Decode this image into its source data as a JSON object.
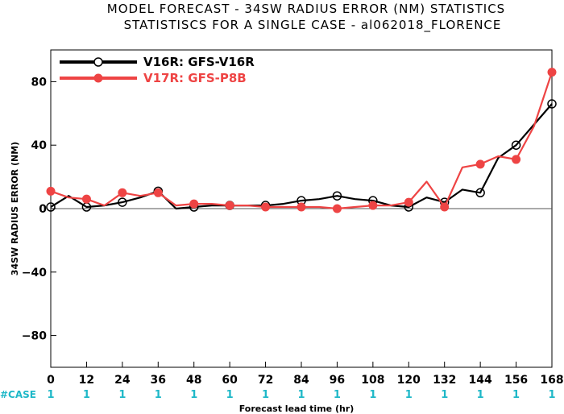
{
  "chart_data": {
    "type": "line",
    "title": "MODEL FORECAST - 34SW RADIUS ERROR (NM) STATISTICS",
    "subtitle": "STATISTISCS FOR A SINGLE CASE - al062018_FLORENCE",
    "xlabel": "Forecast lead time (hr)",
    "ylabel": "34SW RADIUS ERROR (NM)",
    "xlim": [
      0,
      168
    ],
    "ylim": [
      -100,
      100
    ],
    "x_ticks": [
      0,
      12,
      24,
      36,
      48,
      60,
      72,
      84,
      96,
      108,
      120,
      132,
      144,
      156,
      168
    ],
    "y_ticks": [
      80,
      40,
      0,
      -40,
      -80
    ],
    "case_label": "#CASE",
    "case_counts": [
      "1",
      "1",
      "1",
      "1",
      "1",
      "1",
      "1",
      "1",
      "1",
      "1",
      "1",
      "1",
      "1",
      "1",
      "1"
    ],
    "grid": false,
    "legend": "top-left",
    "series": [
      {
        "name": "V16R: GFS-V16R",
        "color": "#000000",
        "line_x": [
          0,
          6,
          12,
          18,
          24,
          30,
          36,
          42,
          48,
          54,
          60,
          66,
          72,
          78,
          84,
          90,
          96,
          102,
          108,
          114,
          120,
          126,
          132,
          138,
          144,
          150,
          156,
          162,
          168
        ],
        "line_y": [
          1,
          8,
          1,
          2,
          4,
          7,
          11,
          0,
          1,
          2,
          2,
          2,
          2,
          3,
          5,
          6,
          8,
          6,
          5,
          2,
          1,
          7,
          4,
          12,
          10,
          32,
          40,
          53,
          66
        ],
        "marker_x": [
          0,
          12,
          24,
          36,
          48,
          60,
          72,
          84,
          96,
          108,
          120,
          132,
          144,
          156,
          168
        ],
        "marker_y": [
          1,
          1,
          4,
          11,
          1,
          2,
          2,
          5,
          8,
          5,
          1,
          4,
          10,
          40,
          66
        ]
      },
      {
        "name": "V17R: GFS-P8B",
        "color": "#ee4444",
        "line_x": [
          0,
          6,
          12,
          18,
          24,
          30,
          36,
          42,
          48,
          54,
          60,
          66,
          72,
          78,
          84,
          90,
          96,
          102,
          108,
          114,
          120,
          126,
          132,
          138,
          144,
          150,
          156,
          162,
          168
        ],
        "line_y": [
          11,
          7,
          6,
          2,
          10,
          8,
          10,
          2,
          3,
          3,
          2,
          2,
          1,
          1,
          1,
          1,
          0,
          1,
          2,
          2,
          4,
          17,
          1,
          26,
          28,
          33,
          31,
          52,
          86
        ],
        "marker_x": [
          0,
          12,
          24,
          36,
          48,
          60,
          72,
          84,
          96,
          108,
          120,
          132,
          144,
          156,
          168
        ],
        "marker_y": [
          11,
          6,
          10,
          10,
          3,
          2,
          1,
          1,
          0,
          2,
          4,
          1,
          28,
          31,
          86
        ]
      }
    ]
  }
}
